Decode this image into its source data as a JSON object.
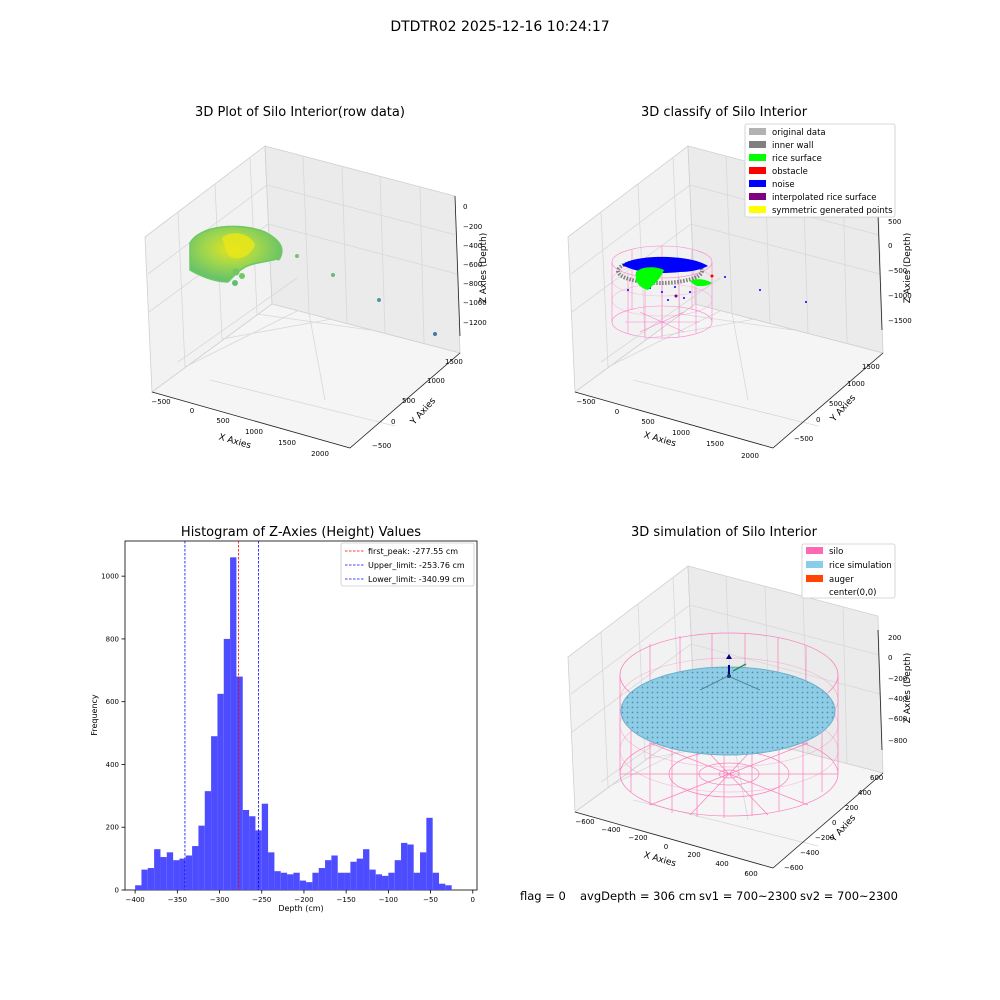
{
  "figure_title": "DTDTR02 2025-12-16 10:24:17",
  "chart_data": [
    {
      "type": "scatter",
      "dims": "3d",
      "title": "3D Plot of Silo Interior(row data)",
      "xlabel": "X Axies",
      "ylabel": "Y Axies",
      "zlabel": "Z Axies (Depth)",
      "x_ticks": [
        "−500",
        "0",
        "500",
        "1000",
        "1500",
        "2000"
      ],
      "y_ticks": [
        "−500",
        "0",
        "500",
        "1000",
        "1500"
      ],
      "z_ticks": [
        "0",
        "−200",
        "−400",
        "−600",
        "−800",
        "−1000",
        "−1200"
      ],
      "grid": true,
      "colormap": [
        "#3b7fa0",
        "#5fc070",
        "#a6d84a",
        "#e6e31a"
      ],
      "point_cloud": "curved rice surface scan near origin, z ≈ −200 to −600, plus a few outlier points descending toward x ≈ 2000, z ≈ −1300"
    },
    {
      "type": "scatter",
      "dims": "3d",
      "title": "3D classify of Silo Interior",
      "xlabel": "X Axies",
      "ylabel": "Y Axies",
      "zlabel": "Z Axies (Depth)",
      "x_ticks": [
        "−500",
        "0",
        "500",
        "1000",
        "1500",
        "2000"
      ],
      "y_ticks": [
        "−500",
        "0",
        "500",
        "1000",
        "1500"
      ],
      "z_ticks": [
        "500",
        "0",
        "−500",
        "−1000",
        "−1500"
      ],
      "grid": true,
      "legend_position": "top-right",
      "legend": [
        {
          "label": "original data",
          "color": "#b2b2b2"
        },
        {
          "label": "inner wall",
          "color": "#808080"
        },
        {
          "label": "rice surface",
          "color": "#00ff00"
        },
        {
          "label": "obstacle",
          "color": "#ff0000"
        },
        {
          "label": "noise",
          "color": "#0000ff"
        },
        {
          "label": "interpolated rice surface",
          "color": "#800080"
        },
        {
          "label": "symmetric generated points",
          "color": "#ffff00"
        }
      ],
      "wireframe_color": "#ff77c8"
    },
    {
      "type": "bar",
      "subtype": "histogram",
      "title": "Histogram of Z-Axies (Height) Values",
      "xlabel": "Depth (cm)",
      "ylabel": "Frequency",
      "xlim": [
        -412,
        5
      ],
      "ylim": [
        0,
        1112
      ],
      "bin_start": -400,
      "bin_width": 7.5,
      "bar_color": "#4d4dff",
      "x_ticks": [
        -400,
        -350,
        -300,
        -250,
        -200,
        -150,
        -100,
        -50,
        0
      ],
      "x_tick_labels": [
        "−400",
        "−350",
        "−300",
        "−250",
        "−200",
        "−150",
        "−100",
        "−50",
        "0"
      ],
      "y_ticks": [
        0,
        200,
        400,
        600,
        800,
        1000
      ],
      "y_tick_labels": [
        "0",
        "200",
        "400",
        "600",
        "800",
        "1000"
      ],
      "values": [
        15,
        65,
        70,
        130,
        105,
        120,
        95,
        100,
        110,
        140,
        205,
        315,
        490,
        625,
        800,
        1060,
        680,
        255,
        235,
        190,
        275,
        120,
        60,
        55,
        50,
        55,
        30,
        25,
        55,
        70,
        95,
        110,
        55,
        55,
        90,
        100,
        130,
        65,
        50,
        45,
        55,
        95,
        150,
        145,
        55,
        120,
        230,
        55,
        20,
        15
      ],
      "vlines": [
        {
          "label": "first_peak: -277.55 cm",
          "x": -277.55,
          "color": "#ff0000"
        },
        {
          "label": "Upper_limit: -253.76 cm",
          "x": -253.76,
          "color": "#0000ff"
        },
        {
          "label": "Lower_limit: -340.99 cm",
          "x": -340.99,
          "color": "#0000ff"
        }
      ],
      "legend_position": "top-right",
      "grid": false
    },
    {
      "type": "scatter",
      "dims": "3d",
      "title": "3D simulation of Silo Interior",
      "xlabel": "X Axies",
      "ylabel": "Y Axies",
      "zlabel": "Z Axies (Depth)",
      "x_ticks": [
        "−600",
        "−400",
        "−200",
        "0",
        "200",
        "400",
        "600"
      ],
      "y_ticks": [
        "−600",
        "−400",
        "−200",
        "0",
        "200",
        "400",
        "600"
      ],
      "z_ticks": [
        "200",
        "0",
        "−200",
        "−400",
        "−600",
        "−800"
      ],
      "grid": true,
      "legend_position": "top-right",
      "legend": [
        {
          "label": "silo",
          "color": "#ff69b4"
        },
        {
          "label": "rice simulation",
          "color": "#87ceeb"
        },
        {
          "label": "auger",
          "color": "#ff4500"
        },
        {
          "label": "center(0,0)",
          "color": "#ffffff"
        }
      ]
    }
  ],
  "status_line": {
    "flag": "flag = 0",
    "avg_depth": "avgDepth = 306 cm",
    "sv1": "sv1 = 700~2300",
    "sv2": "sv2 = 700~2300"
  }
}
